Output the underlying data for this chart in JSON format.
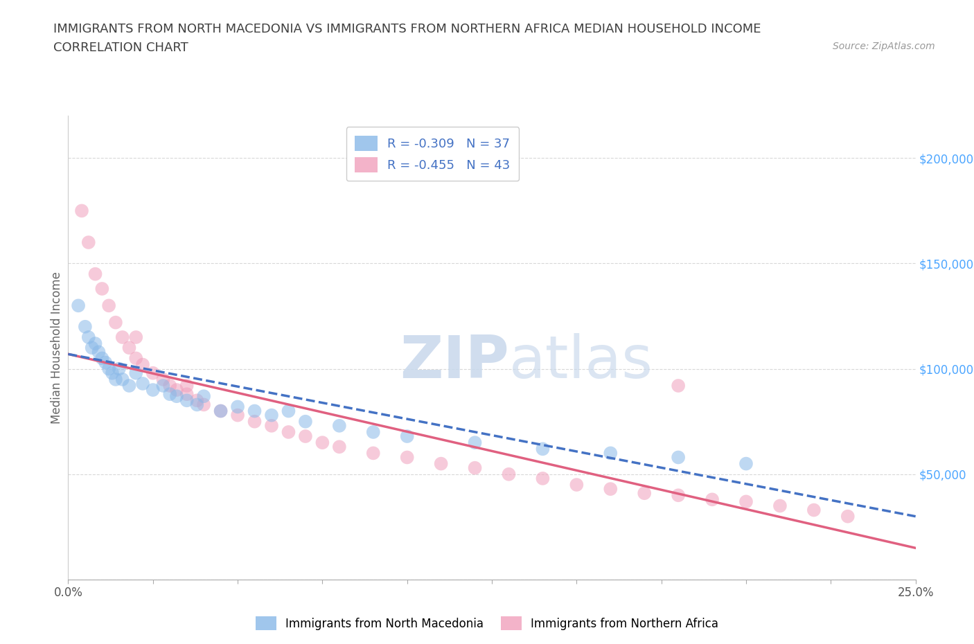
{
  "title_line1": "IMMIGRANTS FROM NORTH MACEDONIA VS IMMIGRANTS FROM NORTHERN AFRICA MEDIAN HOUSEHOLD INCOME",
  "title_line2": "CORRELATION CHART",
  "source": "Source: ZipAtlas.com",
  "ylabel": "Median Household Income",
  "xlim": [
    0.0,
    0.25
  ],
  "ylim": [
    0,
    220000
  ],
  "legend_entry1": "R = -0.309   N = 37",
  "legend_entry2": "R = -0.455   N = 43",
  "legend_label1": "Immigrants from North Macedonia",
  "legend_label2": "Immigrants from Northern Africa",
  "scatter_blue_x": [
    0.003,
    0.005,
    0.006,
    0.007,
    0.008,
    0.009,
    0.01,
    0.011,
    0.012,
    0.013,
    0.014,
    0.015,
    0.016,
    0.018,
    0.02,
    0.022,
    0.025,
    0.028,
    0.03,
    0.032,
    0.035,
    0.038,
    0.04,
    0.045,
    0.05,
    0.055,
    0.06,
    0.065,
    0.07,
    0.08,
    0.09,
    0.1,
    0.12,
    0.14,
    0.16,
    0.18,
    0.2
  ],
  "scatter_blue_y": [
    130000,
    120000,
    115000,
    110000,
    112000,
    108000,
    105000,
    103000,
    100000,
    98000,
    95000,
    100000,
    95000,
    92000,
    98000,
    93000,
    90000,
    92000,
    88000,
    87000,
    85000,
    83000,
    87000,
    80000,
    82000,
    80000,
    78000,
    80000,
    75000,
    73000,
    70000,
    68000,
    65000,
    62000,
    60000,
    58000,
    55000
  ],
  "scatter_pink_x": [
    0.004,
    0.006,
    0.008,
    0.01,
    0.012,
    0.014,
    0.016,
    0.018,
    0.02,
    0.022,
    0.025,
    0.028,
    0.03,
    0.032,
    0.035,
    0.038,
    0.04,
    0.045,
    0.05,
    0.055,
    0.06,
    0.065,
    0.07,
    0.075,
    0.08,
    0.09,
    0.1,
    0.11,
    0.12,
    0.13,
    0.14,
    0.15,
    0.16,
    0.17,
    0.18,
    0.19,
    0.2,
    0.21,
    0.22,
    0.23,
    0.02,
    0.035,
    0.18
  ],
  "scatter_pink_y": [
    175000,
    160000,
    145000,
    138000,
    130000,
    122000,
    115000,
    110000,
    105000,
    102000,
    98000,
    95000,
    92000,
    90000,
    88000,
    85000,
    83000,
    80000,
    78000,
    75000,
    73000,
    70000,
    68000,
    65000,
    63000,
    60000,
    58000,
    55000,
    53000,
    50000,
    48000,
    45000,
    43000,
    41000,
    40000,
    38000,
    37000,
    35000,
    33000,
    30000,
    115000,
    92000,
    92000
  ],
  "trend_blue_x0": 0.0,
  "trend_blue_x1": 0.25,
  "trend_blue_y0": 107000,
  "trend_blue_y1": 30000,
  "trend_pink_x0": 0.0,
  "trend_pink_x1": 0.25,
  "trend_pink_y0": 107000,
  "trend_pink_y1": 15000,
  "watermark_zip": "ZIP",
  "watermark_atlas": "atlas",
  "background_color": "#ffffff",
  "scatter_blue_color": "#89b8e8",
  "scatter_pink_color": "#f0a0bc",
  "trend_blue_color": "#4472c4",
  "trend_pink_color": "#e06080",
  "grid_color": "#d8d8d8",
  "right_axis_color": "#4da6ff",
  "title_color": "#404040",
  "legend_text_color": "#4472c4"
}
